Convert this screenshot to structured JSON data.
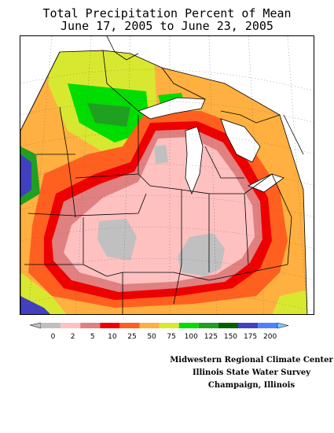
{
  "title": {
    "line1": "Total Precipitation Percent of Mean",
    "line2": "June 17, 2005 to June 23, 2005"
  },
  "legend": {
    "bins": [
      {
        "color": "#c0c0c0"
      },
      {
        "color": "#ffc0c0"
      },
      {
        "color": "#e08080"
      },
      {
        "color": "#ee0000"
      },
      {
        "color": "#ff6020"
      },
      {
        "color": "#ffb040"
      },
      {
        "color": "#d8e830"
      },
      {
        "color": "#00dd00"
      },
      {
        "color": "#20a020"
      },
      {
        "color": "#006000"
      },
      {
        "color": "#4040c0"
      },
      {
        "color": "#5080ff"
      }
    ],
    "labels": [
      "0",
      "2",
      "5",
      "10",
      "25",
      "50",
      "75",
      "100",
      "125",
      "150",
      "175",
      "200"
    ],
    "left_arrow_color": "#c0c0c0",
    "right_arrow_color": "#80c8ff"
  },
  "credits": {
    "line1": "Midwestern Regional Climate Center",
    "line2": "Illinois State Water Survey",
    "line3": "Champaign, Illinois"
  },
  "colors": {
    "outside_region": "#ffffff",
    "water": "#ffffff",
    "state_border": "#000000",
    "grid": "#666666"
  }
}
